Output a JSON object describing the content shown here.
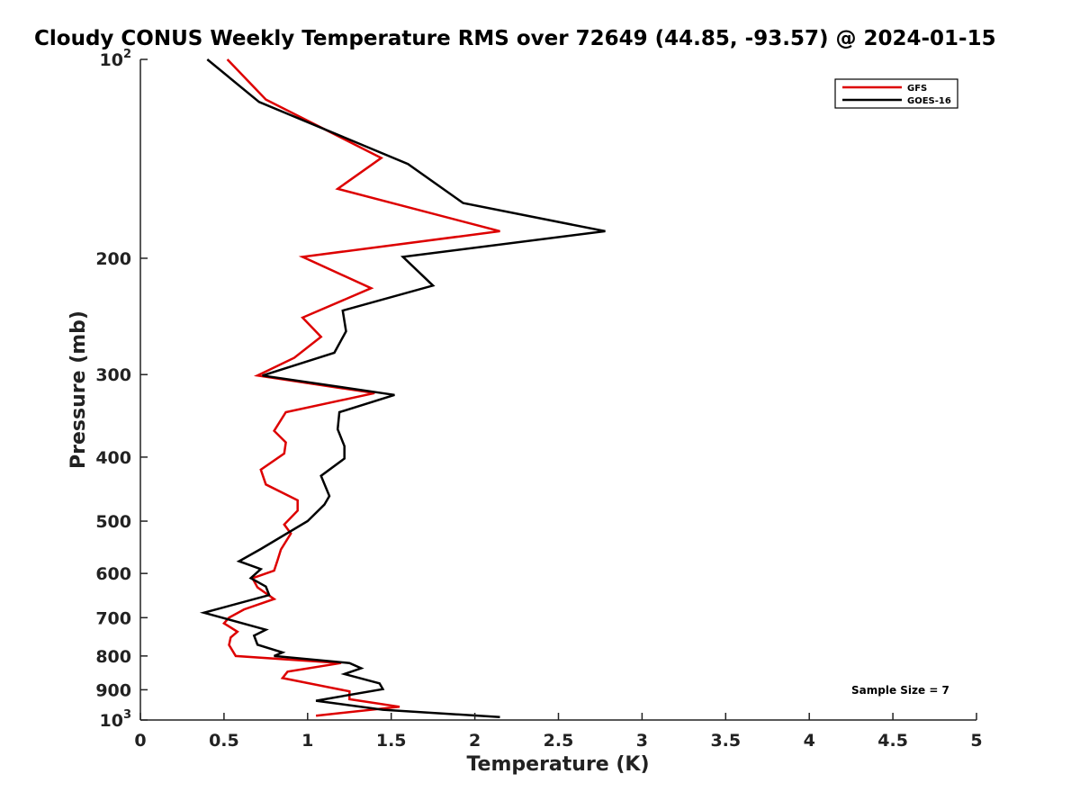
{
  "chart_data": {
    "type": "line",
    "title": "Cloudy CONUS Weekly Temperature RMS over 72649 (44.85, -93.57) @ 2024-01-15",
    "xlabel": "Temperature (K)",
    "ylabel": "Pressure (mb)",
    "xlim": [
      0,
      5
    ],
    "ylim": [
      100,
      1000
    ],
    "y_scale": "log",
    "y_reversed": true,
    "x_ticks": [
      "0",
      "0.5",
      "1",
      "1.5",
      "2",
      "2.5",
      "3",
      "3.5",
      "4",
      "4.5",
      "5"
    ],
    "y_ticks": [
      {
        "value": 100,
        "base": "10",
        "exp": "2"
      },
      {
        "value": 200,
        "label": "200"
      },
      {
        "value": 300,
        "label": "300"
      },
      {
        "value": 400,
        "label": "400"
      },
      {
        "value": 500,
        "label": "500"
      },
      {
        "value": 600,
        "label": "600"
      },
      {
        "value": 700,
        "label": "700"
      },
      {
        "value": 800,
        "label": "800"
      },
      {
        "value": 900,
        "label": "900"
      },
      {
        "value": 1000,
        "base": "10",
        "exp": "3"
      }
    ],
    "grid": false,
    "legend_position": "top-right",
    "annotation": "Sample Size = 7",
    "series": [
      {
        "name": "GFS",
        "color": "#dd0000",
        "points": [
          [
            0.52,
            100
          ],
          [
            0.75,
            115
          ],
          [
            1.44,
            141
          ],
          [
            1.18,
            157
          ],
          [
            2.15,
            182
          ],
          [
            0.97,
            199
          ],
          [
            1.38,
            222
          ],
          [
            0.97,
            246
          ],
          [
            1.08,
            263
          ],
          [
            0.92,
            283
          ],
          [
            0.7,
            301
          ],
          [
            1.4,
            320
          ],
          [
            0.87,
            342
          ],
          [
            0.8,
            365
          ],
          [
            0.87,
            380
          ],
          [
            0.86,
            395
          ],
          [
            0.72,
            418
          ],
          [
            0.75,
            440
          ],
          [
            0.94,
            465
          ],
          [
            0.94,
            482
          ],
          [
            0.86,
            506
          ],
          [
            0.9,
            522
          ],
          [
            0.84,
            552
          ],
          [
            0.82,
            573
          ],
          [
            0.8,
            594
          ],
          [
            0.67,
            610
          ],
          [
            0.7,
            630
          ],
          [
            0.8,
            656
          ],
          [
            0.62,
            680
          ],
          [
            0.53,
            700
          ],
          [
            0.5,
            714
          ],
          [
            0.58,
            735
          ],
          [
            0.54,
            750
          ],
          [
            0.53,
            770
          ],
          [
            0.57,
            800
          ],
          [
            1.2,
            820
          ],
          [
            0.88,
            845
          ],
          [
            0.85,
            864
          ],
          [
            1.25,
            905
          ],
          [
            1.25,
            930
          ],
          [
            1.55,
            955
          ],
          [
            1.05,
            985
          ]
        ]
      },
      {
        "name": "GOES-16",
        "color": "#000000",
        "points": [
          [
            0.4,
            100
          ],
          [
            0.71,
            116
          ],
          [
            1.6,
            144
          ],
          [
            1.93,
            165
          ],
          [
            2.78,
            182
          ],
          [
            1.57,
            199
          ],
          [
            1.75,
            220
          ],
          [
            1.21,
            240
          ],
          [
            1.23,
            258
          ],
          [
            1.16,
            278
          ],
          [
            0.73,
            301
          ],
          [
            1.52,
            322
          ],
          [
            1.19,
            342
          ],
          [
            1.18,
            363
          ],
          [
            1.22,
            385
          ],
          [
            1.22,
            402
          ],
          [
            1.08,
            427
          ],
          [
            1.13,
            458
          ],
          [
            1.1,
            472
          ],
          [
            1.0,
            500
          ],
          [
            0.72,
            551
          ],
          [
            0.59,
            575
          ],
          [
            0.72,
            591
          ],
          [
            0.66,
            610
          ],
          [
            0.75,
            628
          ],
          [
            0.77,
            647
          ],
          [
            0.38,
            688
          ],
          [
            0.75,
            730
          ],
          [
            0.68,
            745
          ],
          [
            0.7,
            769
          ],
          [
            0.85,
            790
          ],
          [
            0.8,
            800
          ],
          [
            1.25,
            820
          ],
          [
            1.32,
            835
          ],
          [
            1.22,
            852
          ],
          [
            1.43,
            880
          ],
          [
            1.45,
            898
          ],
          [
            1.05,
            935
          ],
          [
            1.45,
            965
          ],
          [
            2.15,
            990
          ]
        ]
      }
    ]
  }
}
